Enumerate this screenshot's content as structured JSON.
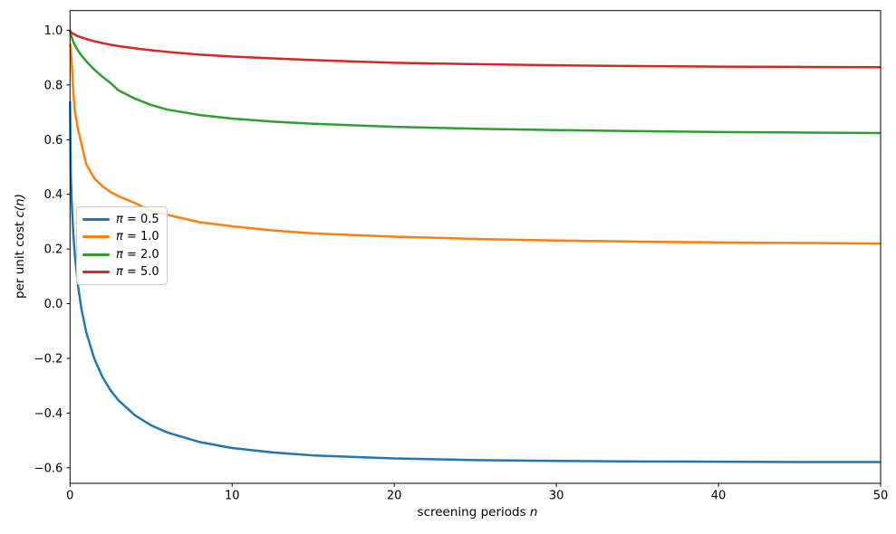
{
  "figure": {
    "background": "#ffffff",
    "text_color": "#000000",
    "spine_color": "#000000"
  },
  "chart_data": {
    "type": "line",
    "title": "",
    "xlabel": "screening periods n",
    "xlabel_parts": {
      "prefix": "screening periods ",
      "math": "n"
    },
    "ylabel": "per unit cost c(n)",
    "ylabel_parts": {
      "prefix": "per unit cost ",
      "math": "c(n)"
    },
    "xlim": [
      0,
      50
    ],
    "ylim": [
      -0.657,
      1.072
    ],
    "grid": false,
    "x_tick_values": [
      0,
      10,
      20,
      30,
      40,
      50
    ],
    "x_tick_labels": [
      "0",
      "10",
      "20",
      "30",
      "40",
      "50"
    ],
    "y_tick_values": [
      1.0,
      0.8,
      0.6,
      0.4,
      0.2,
      0.0,
      -0.2,
      -0.4,
      -0.6
    ],
    "y_tick_labels": [
      "1.0",
      "0.8",
      "0.6",
      "0.4",
      "0.2",
      "0.0",
      "−0.2",
      "−0.4",
      "−0.6"
    ],
    "legend": {
      "position": "center left",
      "entries": [
        {
          "symbol": "π",
          "rest": " = 0.5"
        },
        {
          "symbol": "π",
          "rest": " = 1.0"
        },
        {
          "symbol": "π",
          "rest": " = 2.0"
        },
        {
          "symbol": "π",
          "rest": " = 5.0"
        }
      ]
    },
    "x": [
      0,
      0.05,
      0.1,
      0.2,
      0.3,
      0.5,
      0.7,
      1,
      1.5,
      2,
      2.5,
      3,
      4,
      5,
      6,
      8,
      10,
      12.5,
      15,
      20,
      25,
      30,
      35,
      40,
      45,
      50
    ],
    "series": [
      {
        "name": "π = 0.5",
        "pi": 0.5,
        "color": "#1f77b4",
        "asymptote": -0.58,
        "values": [
          0.74,
          0.471,
          0.376,
          0.256,
          0.175,
          0.062,
          -0.018,
          -0.104,
          -0.202,
          -0.268,
          -0.317,
          -0.354,
          -0.408,
          -0.445,
          -0.471,
          -0.506,
          -0.528,
          -0.544,
          -0.555,
          -0.566,
          -0.572,
          -0.575,
          -0.577,
          -0.578,
          -0.579,
          -0.579
        ]
      },
      {
        "name": "π = 1.0",
        "pi": 1.0,
        "color": "#ff7f0e",
        "asymptote": 0.215,
        "values": [
          0.95,
          0.935,
          0.885,
          0.775,
          0.705,
          0.635,
          0.585,
          0.51,
          0.458,
          0.43,
          0.408,
          0.393,
          0.368,
          0.34,
          0.325,
          0.298,
          0.283,
          0.268,
          0.257,
          0.245,
          0.237,
          0.231,
          0.227,
          0.224,
          0.222,
          0.22
        ]
      },
      {
        "name": "π = 2.0",
        "pi": 2.0,
        "color": "#2ca02c",
        "asymptote": 0.615,
        "values": [
          1.0,
          0.985,
          0.975,
          0.958,
          0.945,
          0.925,
          0.908,
          0.887,
          0.856,
          0.83,
          0.807,
          0.78,
          0.75,
          0.727,
          0.71,
          0.69,
          0.677,
          0.666,
          0.658,
          0.647,
          0.64,
          0.635,
          0.631,
          0.628,
          0.626,
          0.624
        ]
      },
      {
        "name": "π = 5.0",
        "pi": 5.0,
        "color": "#d62728",
        "asymptote": 0.855,
        "values": [
          1.0,
          0.994,
          0.991,
          0.987,
          0.984,
          0.978,
          0.974,
          0.968,
          0.96,
          0.953,
          0.947,
          0.942,
          0.934,
          0.927,
          0.921,
          0.911,
          0.904,
          0.897,
          0.891,
          0.881,
          0.876,
          0.872,
          0.869,
          0.867,
          0.866,
          0.865
        ]
      }
    ],
    "line_width": 2.5
  }
}
